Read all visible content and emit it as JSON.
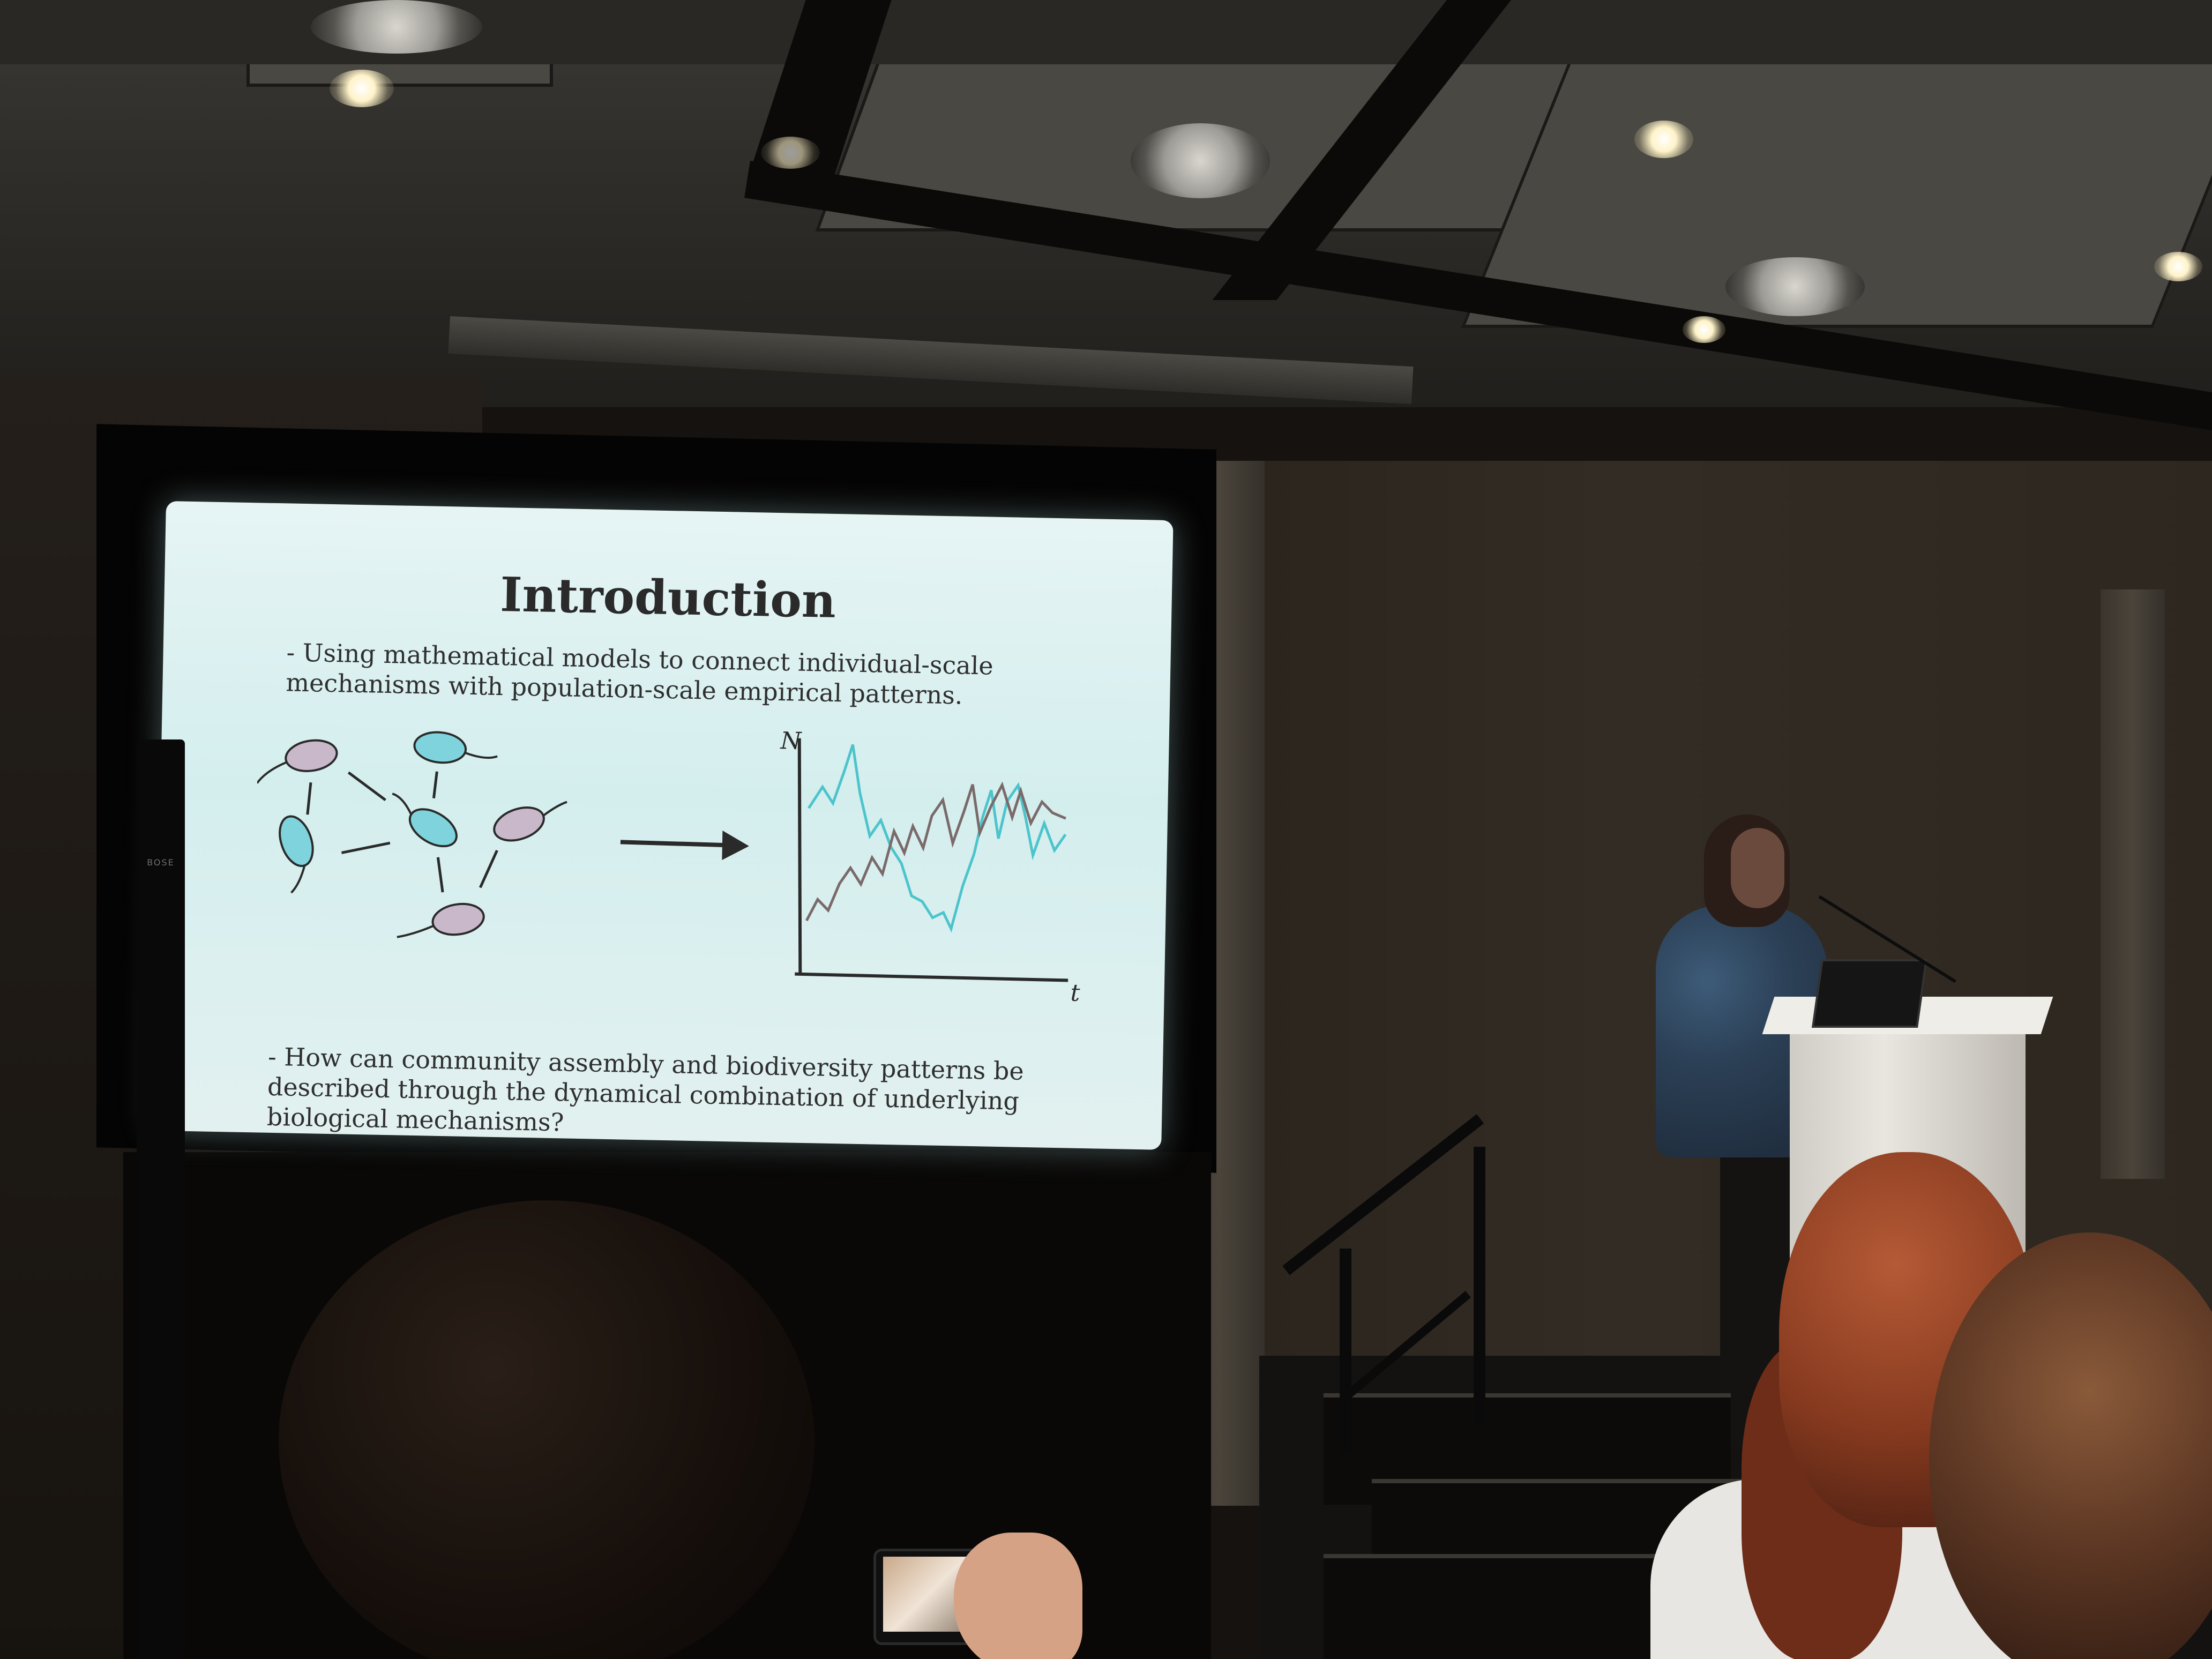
{
  "slide": {
    "title": "Introduction",
    "bullet_1": "- Using mathematical models to connect individual-scale mechanisms with population-scale empirical patterns.",
    "bullet_2": "- How can community assembly and biodiversity patterns be described through the dynamical combination of underlying biological mechanisms?",
    "axis_y_label": "N",
    "axis_x_label": "t"
  },
  "speaker_brand": "BOSE",
  "colors": {
    "slide_background": "#ddf0f0",
    "microbe_teal": "#7fd3dc",
    "microbe_purple": "#c9b8c9",
    "series_teal": "#4cc4cc",
    "series_gray": "#7a6a6a",
    "text_dark": "#2a2a2a"
  }
}
